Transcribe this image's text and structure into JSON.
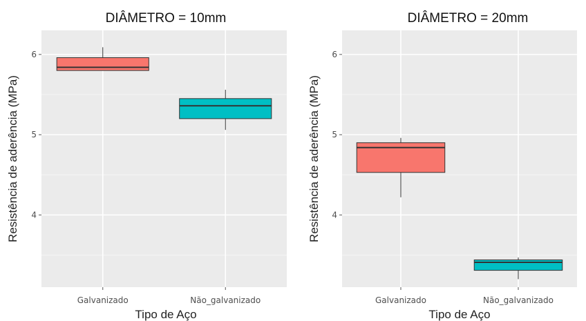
{
  "chart_data": [
    {
      "type": "boxplot",
      "title": "DIÂMETRO = 10mm",
      "xlabel": "Tipo de Aço",
      "ylabel": "Resistência de aderência  (MPa)",
      "categories": [
        "Galvanizado",
        "Não_galvanizado"
      ],
      "ylim": [
        3.1,
        6.3
      ],
      "yticks": [
        4,
        5,
        6
      ],
      "grid": true,
      "boxes": [
        {
          "category": "Galvanizado",
          "min": 5.8,
          "q1": 5.8,
          "median": 5.84,
          "q3": 5.96,
          "max": 6.09,
          "color": "#f8766d"
        },
        {
          "category": "Não_galvanizado",
          "min": 5.06,
          "q1": 5.2,
          "median": 5.36,
          "q3": 5.45,
          "max": 5.56,
          "color": "#00bfc4"
        }
      ]
    },
    {
      "type": "boxplot",
      "title": "DIÂMETRO = 20mm",
      "xlabel": "Tipo de Aço",
      "ylabel": "Resistência de aderência  (MPa)",
      "categories": [
        "Galvanizado",
        "Não_galvanizado"
      ],
      "ylim": [
        3.1,
        6.3
      ],
      "yticks": [
        4,
        5,
        6
      ],
      "grid": true,
      "boxes": [
        {
          "category": "Galvanizado",
          "min": 4.22,
          "q1": 4.53,
          "median": 4.84,
          "q3": 4.9,
          "max": 4.96,
          "color": "#f8766d"
        },
        {
          "category": "Não_galvanizado",
          "min": 3.2,
          "q1": 3.31,
          "median": 3.41,
          "q3": 3.44,
          "max": 3.47,
          "color": "#00bfc4"
        }
      ]
    }
  ]
}
